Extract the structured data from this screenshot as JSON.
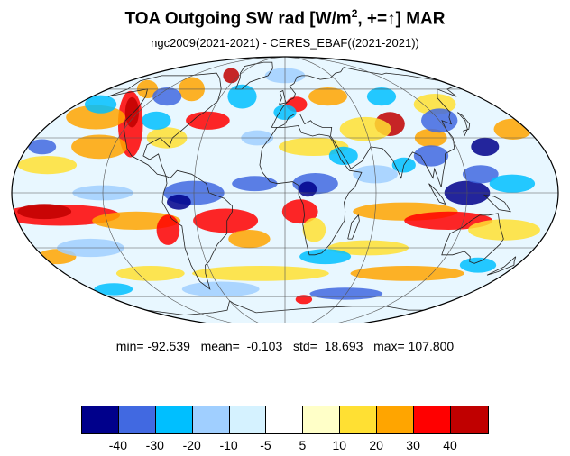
{
  "title": {
    "main": "TOA Outgoing SW rad [W/m",
    "sup": "2",
    "rest": ", +=↑] MAR"
  },
  "subtitle": "ngc2009(2021-2021) - CERES_EBAF((2021-2021))",
  "stats": {
    "min_label": "min=",
    "min": "-92.539",
    "mean_label": "mean=",
    "mean": "-0.103",
    "std_label": "std=",
    "std": "18.693",
    "max_label": "max=",
    "max": "107.800"
  },
  "colorbar": {
    "colors": [
      "#00008b",
      "#4169e1",
      "#00bfff",
      "#a0cfff",
      "#d5f2ff",
      "#ffffff",
      "#ffffc8",
      "#ffe033",
      "#ffa500",
      "#ff0000",
      "#c00000"
    ],
    "labels": [
      "-40",
      "-30",
      "-20",
      "-10",
      "-5",
      "5",
      "10",
      "20",
      "30",
      "40"
    ]
  },
  "map": {
    "projection": "mollweide",
    "field": "TOA outgoing shortwave radiation difference, March",
    "regions": [
      {
        "lon": -118,
        "lat": 38,
        "rx": 10,
        "ry": 22,
        "color": "#ff0000"
      },
      {
        "lon": -125,
        "lat": 45,
        "rx": 6,
        "ry": 10,
        "color": "#c00000"
      },
      {
        "lon": -150,
        "lat": 42,
        "rx": 25,
        "ry": 8,
        "color": "#ffa500"
      },
      {
        "lon": -160,
        "lat": 15,
        "rx": 20,
        "ry": 6,
        "color": "#ffe033"
      },
      {
        "lon": -130,
        "lat": 25,
        "rx": 20,
        "ry": 8,
        "color": "#ffa500"
      },
      {
        "lon": -85,
        "lat": 30,
        "rx": 15,
        "ry": 7,
        "color": "#ffe033"
      },
      {
        "lon": -60,
        "lat": 40,
        "rx": 18,
        "ry": 6,
        "color": "#ff0000"
      },
      {
        "lon": -95,
        "lat": 60,
        "rx": 15,
        "ry": 8,
        "color": "#ffa500"
      },
      {
        "lon": -70,
        "lat": 70,
        "rx": 12,
        "ry": 5,
        "color": "#c00000"
      },
      {
        "lon": -150,
        "lat": -12,
        "rx": 40,
        "ry": 7,
        "color": "#ff0000"
      },
      {
        "lon": -160,
        "lat": -10,
        "rx": 18,
        "ry": 5,
        "color": "#c00000"
      },
      {
        "lon": -100,
        "lat": -15,
        "rx": 30,
        "ry": 6,
        "color": "#ffa500"
      },
      {
        "lon": -80,
        "lat": -20,
        "rx": 8,
        "ry": 10,
        "color": "#ff0000"
      },
      {
        "lon": -40,
        "lat": -15,
        "rx": 22,
        "ry": 8,
        "color": "#ff0000"
      },
      {
        "lon": -25,
        "lat": -25,
        "rx": 15,
        "ry": 6,
        "color": "#ffa500"
      },
      {
        "lon": 10,
        "lat": -10,
        "rx": 12,
        "ry": 8,
        "color": "#ff0000"
      },
      {
        "lon": 20,
        "lat": -20,
        "rx": 8,
        "ry": 8,
        "color": "#ffe033"
      },
      {
        "lon": 80,
        "lat": -10,
        "rx": 35,
        "ry": 6,
        "color": "#ffa500"
      },
      {
        "lon": 110,
        "lat": -15,
        "rx": 30,
        "ry": 6,
        "color": "#ff0000"
      },
      {
        "lon": 150,
        "lat": -20,
        "rx": 25,
        "ry": 7,
        "color": "#ffe033"
      },
      {
        "lon": 60,
        "lat": -30,
        "rx": 30,
        "ry": 5,
        "color": "#ffe033"
      },
      {
        "lon": 80,
        "lat": 38,
        "rx": 12,
        "ry": 8,
        "color": "#c00000"
      },
      {
        "lon": 105,
        "lat": 30,
        "rx": 12,
        "ry": 6,
        "color": "#ffa500"
      },
      {
        "lon": 60,
        "lat": 35,
        "rx": 20,
        "ry": 8,
        "color": "#ffe033"
      },
      {
        "lon": 40,
        "lat": 55,
        "rx": 20,
        "ry": 6,
        "color": "#ffa500"
      },
      {
        "lon": 10,
        "lat": 50,
        "rx": 10,
        "ry": 5,
        "color": "#ff0000"
      },
      {
        "lon": 20,
        "lat": 25,
        "rx": 25,
        "ry": 6,
        "color": "#ffe033"
      },
      {
        "lon": 170,
        "lat": 35,
        "rx": 15,
        "ry": 7,
        "color": "#ffa500"
      },
      {
        "lon": 130,
        "lat": 50,
        "rx": 20,
        "ry": 7,
        "color": "#ffe033"
      },
      {
        "lon": -20,
        "lat": -45,
        "rx": 60,
        "ry": 5,
        "color": "#ffe033"
      },
      {
        "lon": 100,
        "lat": -45,
        "rx": 50,
        "ry": 5,
        "color": "#ffa500"
      },
      {
        "lon": -110,
        "lat": -45,
        "rx": 30,
        "ry": 5,
        "color": "#ffe033"
      },
      {
        "lon": 20,
        "lat": -62,
        "rx": 10,
        "ry": 3,
        "color": "#ff0000"
      },
      {
        "lon": -140,
        "lat": 60,
        "rx": 12,
        "ry": 6,
        "color": "#ffa500"
      },
      {
        "lon": -170,
        "lat": -35,
        "rx": 15,
        "ry": 5,
        "color": "#ffa500"
      },
      {
        "lon": 40,
        "lat": 20,
        "rx": 10,
        "ry": 6,
        "color": "#00bfff"
      },
      {
        "lon": 20,
        "lat": 5,
        "rx": 15,
        "ry": 7,
        "color": "#4169e1"
      },
      {
        "lon": 15,
        "lat": 2,
        "rx": 6,
        "ry": 5,
        "color": "#00008b"
      },
      {
        "lon": 100,
        "lat": 20,
        "rx": 12,
        "ry": 7,
        "color": "#4169e1"
      },
      {
        "lon": 120,
        "lat": 0,
        "rx": 15,
        "ry": 8,
        "color": "#00008b"
      },
      {
        "lon": 130,
        "lat": 10,
        "rx": 12,
        "ry": 6,
        "color": "#4169e1"
      },
      {
        "lon": 150,
        "lat": 5,
        "rx": 15,
        "ry": 6,
        "color": "#00bfff"
      },
      {
        "lon": 120,
        "lat": 40,
        "rx": 15,
        "ry": 8,
        "color": "#4169e1"
      },
      {
        "lon": 90,
        "lat": 55,
        "rx": 15,
        "ry": 6,
        "color": "#00bfff"
      },
      {
        "lon": 140,
        "lat": 25,
        "rx": 10,
        "ry": 6,
        "color": "#00008b"
      },
      {
        "lon": -60,
        "lat": 0,
        "rx": 20,
        "ry": 8,
        "color": "#4169e1"
      },
      {
        "lon": -70,
        "lat": -5,
        "rx": 8,
        "ry": 5,
        "color": "#00008b"
      },
      {
        "lon": -100,
        "lat": 40,
        "rx": 12,
        "ry": 6,
        "color": "#00bfff"
      },
      {
        "lon": -110,
        "lat": 55,
        "rx": 15,
        "ry": 6,
        "color": "#4169e1"
      },
      {
        "lon": -40,
        "lat": 55,
        "rx": 15,
        "ry": 8,
        "color": "#00bfff"
      },
      {
        "lon": -160,
        "lat": 50,
        "rx": 15,
        "ry": 6,
        "color": "#00bfff"
      },
      {
        "lon": -170,
        "lat": 25,
        "rx": 10,
        "ry": 5,
        "color": "#4169e1"
      },
      {
        "lon": -120,
        "lat": 0,
        "rx": 20,
        "ry": 5,
        "color": "#a0cfff"
      },
      {
        "lon": -20,
        "lat": 5,
        "rx": 15,
        "ry": 5,
        "color": "#4169e1"
      },
      {
        "lon": 0,
        "lat": 45,
        "rx": 10,
        "ry": 5,
        "color": "#00bfff"
      },
      {
        "lon": 60,
        "lat": 10,
        "rx": 15,
        "ry": 6,
        "color": "#a0cfff"
      },
      {
        "lon": 80,
        "lat": 15,
        "rx": 8,
        "ry": 5,
        "color": "#00bfff"
      },
      {
        "lon": -140,
        "lat": -30,
        "rx": 25,
        "ry": 6,
        "color": "#a0cfff"
      },
      {
        "lon": 30,
        "lat": -35,
        "rx": 20,
        "ry": 5,
        "color": "#00bfff"
      },
      {
        "lon": 150,
        "lat": -40,
        "rx": 15,
        "ry": 5,
        "color": "#00bfff"
      },
      {
        "lon": -60,
        "lat": -55,
        "rx": 40,
        "ry": 5,
        "color": "#a0cfff"
      },
      {
        "lon": 60,
        "lat": -58,
        "rx": 40,
        "ry": 4,
        "color": "#4169e1"
      },
      {
        "lon": -160,
        "lat": -55,
        "rx": 20,
        "ry": 4,
        "color": "#00bfff"
      },
      {
        "lon": 0,
        "lat": 70,
        "rx": 30,
        "ry": 5,
        "color": "#a0cfff"
      },
      {
        "lon": -20,
        "lat": 30,
        "rx": 12,
        "ry": 5,
        "color": "#a0cfff"
      }
    ]
  }
}
